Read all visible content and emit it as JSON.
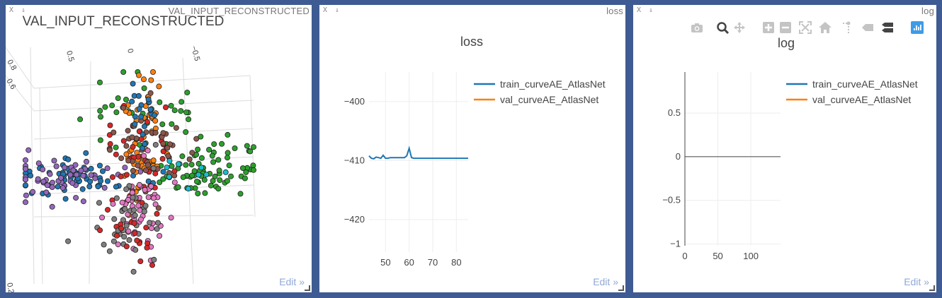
{
  "panes": {
    "scatter": {
      "window_title": "VAL_INPUT_RECONSTRUCTED",
      "close": "X",
      "pin": "⇓",
      "edit": "Edit »"
    },
    "loss": {
      "window_title": "loss",
      "close": "X",
      "pin": "⇓",
      "edit": "Edit »"
    },
    "log": {
      "window_title": "log",
      "close": "X",
      "pin": "⇓",
      "edit": "Edit »"
    }
  },
  "modebar": {
    "icons": [
      "camera-icon",
      "zoom-icon",
      "pan-icon",
      "zoom-in-icon",
      "zoom-out-icon",
      "autoscale-icon",
      "home-icon",
      "spike-lines-icon",
      "hover-closest-icon",
      "hover-compare-icon",
      "plotly-logo-icon"
    ]
  },
  "chart_data": [
    {
      "type": "scatter",
      "subtype": "scatter3d",
      "title": "VAL_INPUT_RECONSTRUCTED",
      "axis_tick_labels": {
        "top_axis": [
          "0.5",
          "0",
          "−0.5"
        ],
        "left_axis": [
          "0.8",
          "0.6"
        ],
        "bottom_left": "0.2"
      },
      "series_colors": [
        "#1f77b4",
        "#ff7f0e",
        "#2ca02c",
        "#d62728",
        "#9467bd",
        "#8c564b",
        "#e377c2",
        "#7f7f7f",
        "#17becf"
      ],
      "note": "3D point cloud (reconstructed shape), ~600 points in 9 color groups"
    },
    {
      "type": "line",
      "title": "loss",
      "xlabel": "",
      "ylabel": "",
      "xlim": [
        43,
        85
      ],
      "ylim": [
        -425.5,
        -395
      ],
      "x_ticks": [
        50,
        60,
        70,
        80
      ],
      "y_ticks": [
        -400,
        -410,
        -420
      ],
      "x_tick_labels": [
        "50",
        "60",
        "70",
        "80"
      ],
      "y_tick_labels": [
        "−400",
        "−410",
        "−420"
      ],
      "grid": true,
      "legend_position": "top-right",
      "series": [
        {
          "name": "train_curveAE_AtlasNet",
          "color": "#1f77b4",
          "x": [
            43,
            44,
            45,
            46,
            47,
            48,
            49,
            50,
            51,
            52,
            53,
            54,
            55,
            56,
            57,
            58,
            59,
            60,
            61,
            62,
            63,
            64,
            65,
            66,
            67,
            68,
            69,
            70,
            71,
            72,
            73,
            74,
            75,
            76,
            77,
            78,
            79,
            80,
            81,
            82,
            83,
            84,
            85
          ],
          "y": [
            -409.2,
            -409.6,
            -409.7,
            -409.4,
            -409.5,
            -409.6,
            -409.1,
            -409.6,
            -409.6,
            -409.5,
            -409.5,
            -409.5,
            -409.5,
            -409.5,
            -409.5,
            -409.5,
            -409.2,
            -407.9,
            -409.5,
            -409.6,
            -409.6,
            -409.6,
            -409.6,
            -409.6,
            -409.6,
            -409.6,
            -409.6,
            -409.6,
            -409.6,
            -409.6,
            -409.6,
            -409.6,
            -409.6,
            -409.6,
            -409.6,
            -409.6,
            -409.6,
            -409.6,
            -409.6,
            -409.6,
            -409.6,
            -409.6,
            -409.6
          ]
        },
        {
          "name": "val_curveAE_AtlasNet",
          "color": "#ff7f0e",
          "x": [],
          "y": []
        }
      ]
    },
    {
      "type": "line",
      "title": "log",
      "xlabel": "",
      "ylabel": "",
      "xlim": [
        0,
        145
      ],
      "ylim": [
        -1.02,
        0.97
      ],
      "x_ticks": [
        0,
        50,
        100
      ],
      "y_ticks": [
        0.5,
        0,
        -0.5,
        -1
      ],
      "x_tick_labels": [
        "0",
        "50",
        "100"
      ],
      "y_tick_labels": [
        "0.5",
        "0",
        "−0.5",
        "−1"
      ],
      "grid": true,
      "legend_position": "top-right",
      "series": [
        {
          "name": "train_curveAE_AtlasNet",
          "color": "#1f77b4",
          "x": [],
          "y": []
        },
        {
          "name": "val_curveAE_AtlasNet",
          "color": "#ff7f0e",
          "x": [],
          "y": []
        }
      ]
    }
  ]
}
